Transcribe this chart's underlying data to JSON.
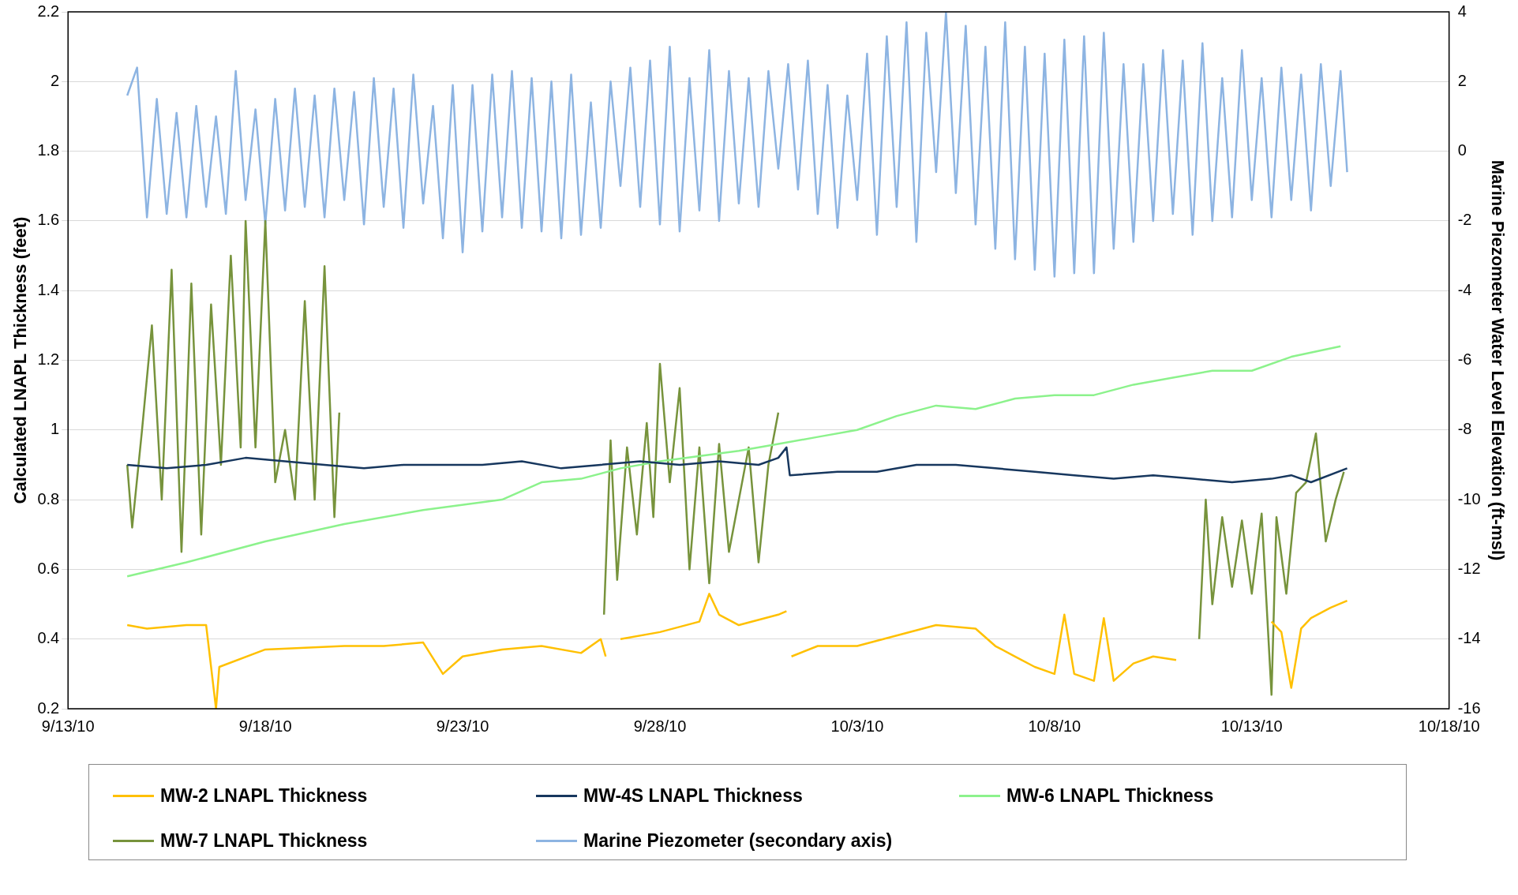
{
  "chart_data": {
    "type": "line",
    "ylabel": "Calculated LNAPL Thickness (feet)",
    "y2label": "Marine Piezometer Water Level Elevation (ft-msl)",
    "xlim": [
      "--09-13",
      "--10-18"
    ],
    "xticks": [
      {
        "value": "--09-13",
        "label": "9/13/10"
      },
      {
        "value": "--09-18",
        "label": "9/18/10"
      },
      {
        "value": "--09-23",
        "label": "9/23/10"
      },
      {
        "value": "--09-28",
        "label": "9/28/10"
      },
      {
        "value": "--10-03",
        "label": "10/3/10"
      },
      {
        "value": "--10-08",
        "label": "10/8/10"
      },
      {
        "value": "--10-13",
        "label": "10/13/10"
      },
      {
        "value": "--10-18",
        "label": "10/18/10"
      }
    ],
    "ylim": [
      0.2,
      2.2
    ],
    "yticks": [
      0.2,
      0.4,
      0.6,
      0.8,
      1,
      1.2,
      1.4,
      1.6,
      1.8,
      2,
      2.2
    ],
    "y2lim": [
      -16,
      4
    ],
    "y2ticks": [
      -16,
      -14,
      -12,
      -10,
      -8,
      -6,
      -4,
      -2,
      0,
      2,
      4
    ],
    "grid": "y",
    "legend": "bottom",
    "marker": "none",
    "line_style": "solid",
    "series": [
      {
        "name": "MW-2 LNAPL Thickness",
        "color": "#ffc000",
        "x": [
          "--09-14T12:00",
          "--09-15T00:00",
          "--09-16T00:00",
          "--09-16T12:00",
          "--09-16T18:00",
          "--09-16T20:00",
          "--09-18T00:00",
          "--09-20T00:00",
          "--09-21T00:00",
          "--09-22T00:00",
          "--09-22T12:00",
          "--09-23T00:00",
          "--09-24T00:00",
          "--09-25T00:00",
          "--09-26T00:00",
          "--09-26T12:00",
          "--09-26T15:00",
          "--09-26T18:00",
          "--09-27T00:00",
          "--09-28T00:00",
          "--09-29T00:00",
          "--09-29T06:00",
          "--09-29T12:00",
          "--09-30T00:00",
          "--10-01T00:00",
          "--10-01T05:00",
          "--10-01T06:00",
          "--10-01T08:00",
          "--10-02T00:00",
          "--10-03T00:00",
          "--10-04T00:00",
          "--10-05T00:00",
          "--10-06T00:00",
          "--10-06T12:00",
          "--10-07T00:00",
          "--10-07T12:00",
          "--10-08T00:00",
          "--10-08T06:00",
          "--10-08T12:00",
          "--10-09T00:00",
          "--10-09T06:00",
          "--10-09T12:00",
          "--10-10T00:00",
          "--10-10T12:00",
          "--10-11T02:00",
          "--10-12T00:00",
          "--10-13T12:00",
          "--10-13T18:00",
          "--10-14T00:00",
          "--10-14T06:00",
          "--10-14T12:00",
          "--10-15T00:00",
          "--10-15T10:00"
        ],
        "values": [
          0.44,
          0.43,
          0.44,
          0.44,
          0.2,
          0.32,
          0.37,
          0.38,
          0.38,
          0.39,
          0.3,
          0.35,
          0.37,
          0.38,
          0.36,
          0.4,
          0.35,
          null,
          0.4,
          0.42,
          0.45,
          0.53,
          0.47,
          0.44,
          0.47,
          0.48,
          null,
          0.35,
          0.38,
          0.38,
          0.41,
          0.44,
          0.43,
          0.38,
          0.35,
          0.32,
          0.3,
          0.47,
          0.3,
          0.28,
          0.46,
          0.28,
          0.33,
          0.35,
          0.34,
          null,
          0.45,
          0.42,
          0.26,
          0.43,
          0.46,
          0.49,
          0.51
        ]
      },
      {
        "name": "MW-4S LNAPL Thickness",
        "color": "#17375e",
        "x": [
          "--09-14T12:00",
          "--09-15T12:00",
          "--09-16T12:00",
          "--09-17T12:00",
          "--09-18T12:00",
          "--09-19T12:00",
          "--09-20T12:00",
          "--09-21T12:00",
          "--09-22T12:00",
          "--09-23T12:00",
          "--09-24T12:00",
          "--09-25T12:00",
          "--09-26T12:00",
          "--09-27T12:00",
          "--09-28T12:00",
          "--09-29T12:00",
          "--09-30T12:00",
          "--10-01T00:00",
          "--10-01T05:00",
          "--10-01T07:00",
          "--10-02T12:00",
          "--10-03T12:00",
          "--10-04T12:00",
          "--10-05T12:00",
          "--10-06T12:00",
          "--10-07T12:00",
          "--10-08T12:00",
          "--10-09T12:00",
          "--10-10T12:00",
          "--10-11T12:00",
          "--10-12T12:00",
          "--10-13T12:00",
          "--10-14T00:00",
          "--10-14T12:00",
          "--10-15T10:00"
        ],
        "values": [
          0.9,
          0.89,
          0.9,
          0.92,
          0.91,
          0.9,
          0.89,
          0.9,
          0.9,
          0.9,
          0.91,
          0.89,
          0.9,
          0.91,
          0.9,
          0.91,
          0.9,
          0.92,
          0.95,
          0.87,
          0.88,
          0.88,
          0.9,
          0.9,
          0.89,
          0.88,
          0.87,
          0.86,
          0.87,
          0.86,
          0.85,
          0.86,
          0.87,
          0.85,
          0.89
        ]
      },
      {
        "name": "MW-6 LNAPL Thickness",
        "color": "#8cf28c",
        "x": [
          "--09-14T12:00",
          "--09-16T00:00",
          "--09-18T00:00",
          "--09-20T00:00",
          "--09-22T00:00",
          "--09-24T00:00",
          "--09-25T00:00",
          "--09-26T00:00",
          "--09-27T00:00",
          "--09-28T00:00",
          "--09-30T00:00",
          "--10-01T00:00",
          "--10-02T00:00",
          "--10-03T00:00",
          "--10-04T00:00",
          "--10-05T00:00",
          "--10-06T00:00",
          "--10-07T00:00",
          "--10-08T00:00",
          "--10-09T00:00",
          "--10-10T00:00",
          "--10-11T00:00",
          "--10-12T00:00",
          "--10-13T00:00",
          "--10-14T00:00",
          "--10-15T06:00"
        ],
        "values": [
          0.58,
          0.62,
          0.68,
          0.73,
          0.77,
          0.8,
          0.85,
          0.86,
          0.89,
          0.91,
          0.94,
          0.96,
          0.98,
          1,
          1.04,
          1.07,
          1.06,
          1.09,
          1.1,
          1.1,
          1.13,
          1.15,
          1.17,
          1.17,
          1.21,
          1.24
        ]
      },
      {
        "name": "MW-7 LNAPL Thickness",
        "color": "#77933c",
        "x": [
          "--09-14T12:00",
          "--09-14T15:00",
          "--09-14T21:00",
          "--09-15T03:00",
          "--09-15T09:00",
          "--09-15T15:00",
          "--09-15T21:00",
          "--09-16T03:00",
          "--09-16T09:00",
          "--09-16T15:00",
          "--09-16T21:00",
          "--09-17T03:00",
          "--09-17T09:00",
          "--09-17T12:00",
          "--09-17T18:00",
          "--09-18T00:00",
          "--09-18T06:00",
          "--09-18T12:00",
          "--09-18T18:00",
          "--09-19T00:00",
          "--09-19T06:00",
          "--09-19T12:00",
          "--09-19T18:00",
          "--09-19T21:00",
          "--09-20T00:00",
          "--09-26T14:00",
          "--09-26T18:00",
          "--09-26T22:00",
          "--09-27T04:00",
          "--09-27T10:00",
          "--09-27T16:00",
          "--09-27T20:00",
          "--09-28T00:00",
          "--09-28T06:00",
          "--09-28T12:00",
          "--09-28T18:00",
          "--09-29T00:00",
          "--09-29T06:00",
          "--09-29T12:00",
          "--09-29T18:00",
          "--09-30T06:00",
          "--09-30T12:00",
          "--09-30T18:00",
          "--10-01T00:00",
          "--10-06T00:00",
          "--10-11T16:00",
          "--10-11T20:00",
          "--10-12T00:00",
          "--10-12T06:00",
          "--10-12T12:00",
          "--10-12T18:00",
          "--10-13T00:00",
          "--10-13T06:00",
          "--10-13T12:00",
          "--10-13T15:00",
          "--10-13T21:00",
          "--10-14T03:00",
          "--10-14T09:00",
          "--10-14T15:00",
          "--10-14T21:00",
          "--10-15T03:00",
          "--10-15T08:00"
        ],
        "values": [
          0.9,
          0.72,
          1,
          1.3,
          0.8,
          1.46,
          0.65,
          1.42,
          0.7,
          1.36,
          0.9,
          1.5,
          0.95,
          1.6,
          0.95,
          1.6,
          0.85,
          1,
          0.8,
          1.37,
          0.8,
          1.47,
          0.75,
          1.05,
          null,
          0.47,
          0.97,
          0.57,
          0.95,
          0.7,
          1.02,
          0.75,
          1.19,
          0.85,
          1.12,
          0.6,
          0.95,
          0.56,
          0.96,
          0.65,
          0.95,
          0.62,
          0.9,
          1.05,
          null,
          0.4,
          0.8,
          0.5,
          0.75,
          0.55,
          0.74,
          0.53,
          0.76,
          0.24,
          0.75,
          0.53,
          0.82,
          0.85,
          0.99,
          0.68,
          0.8,
          0.88
        ]
      },
      {
        "name": "Marine Piezometer (secondary axis)",
        "color": "#8db4e2",
        "axis": "y2",
        "x": [
          "--09-14T12:00",
          "--09-14T18:00",
          "--09-15T00:00",
          "--09-15T06:00",
          "--09-15T12:00",
          "--09-15T18:00",
          "--09-16T00:00",
          "--09-16T06:00",
          "--09-16T12:00",
          "--09-16T18:00",
          "--09-17T00:00",
          "--09-17T06:00",
          "--09-17T12:00",
          "--09-17T18:00",
          "--09-18T00:00",
          "--09-18T06:00",
          "--09-18T12:00",
          "--09-18T18:00",
          "--09-19T00:00",
          "--09-19T06:00",
          "--09-19T12:00",
          "--09-19T18:00",
          "--09-20T00:00",
          "--09-20T06:00",
          "--09-20T12:00",
          "--09-20T18:00",
          "--09-21T00:00",
          "--09-21T06:00",
          "--09-21T12:00",
          "--09-21T18:00",
          "--09-22T00:00",
          "--09-22T06:00",
          "--09-22T12:00",
          "--09-22T18:00",
          "--09-23T00:00",
          "--09-23T06:00",
          "--09-23T12:00",
          "--09-23T18:00",
          "--09-24T00:00",
          "--09-24T06:00",
          "--09-24T12:00",
          "--09-24T18:00",
          "--09-25T00:00",
          "--09-25T06:00",
          "--09-25T12:00",
          "--09-25T18:00",
          "--09-26T00:00",
          "--09-26T06:00",
          "--09-26T12:00",
          "--09-26T18:00",
          "--09-27T00:00",
          "--09-27T06:00",
          "--09-27T12:00",
          "--09-27T18:00",
          "--09-28T00:00",
          "--09-28T06:00",
          "--09-28T12:00",
          "--09-28T18:00",
          "--09-29T00:00",
          "--09-29T06:00",
          "--09-29T12:00",
          "--09-29T18:00",
          "--09-30T00:00",
          "--09-30T06:00",
          "--09-30T12:00",
          "--09-30T18:00",
          "--10-01T00:00",
          "--10-01T06:00",
          "--10-01T12:00",
          "--10-01T18:00",
          "--10-02T00:00",
          "--10-02T06:00",
          "--10-02T12:00",
          "--10-02T18:00",
          "--10-03T00:00",
          "--10-03T06:00",
          "--10-03T12:00",
          "--10-03T18:00",
          "--10-04T00:00",
          "--10-04T06:00",
          "--10-04T12:00",
          "--10-04T18:00",
          "--10-05T00:00",
          "--10-05T06:00",
          "--10-05T12:00",
          "--10-05T18:00",
          "--10-06T00:00",
          "--10-06T06:00",
          "--10-06T12:00",
          "--10-06T18:00",
          "--10-07T00:00",
          "--10-07T06:00",
          "--10-07T12:00",
          "--10-07T18:00",
          "--10-08T00:00",
          "--10-08T06:00",
          "--10-08T12:00",
          "--10-08T18:00",
          "--10-09T00:00",
          "--10-09T06:00",
          "--10-09T12:00",
          "--10-09T18:00",
          "--10-10T00:00",
          "--10-10T06:00",
          "--10-10T12:00",
          "--10-10T18:00",
          "--10-11T00:00",
          "--10-11T06:00",
          "--10-11T12:00",
          "--10-11T18:00",
          "--10-12T00:00",
          "--10-12T06:00",
          "--10-12T12:00",
          "--10-12T18:00",
          "--10-13T00:00",
          "--10-13T06:00",
          "--10-13T12:00",
          "--10-13T18:00",
          "--10-14T00:00",
          "--10-14T06:00",
          "--10-14T12:00",
          "--10-14T18:00",
          "--10-15T00:00",
          "--10-15T06:00",
          "--10-15T10:00"
        ],
        "values": [
          1.6,
          2.4,
          -1.9,
          1.5,
          -1.8,
          1.1,
          -1.9,
          1.3,
          -1.6,
          1,
          -1.8,
          2.3,
          -1.4,
          1.2,
          -2.1,
          1.5,
          -1.7,
          1.8,
          -1.6,
          1.6,
          -1.9,
          1.8,
          -1.4,
          1.7,
          -2.1,
          2.1,
          -1.6,
          1.8,
          -2.2,
          2.2,
          -1.5,
          1.3,
          -2.5,
          1.9,
          -2.9,
          1.9,
          -2.3,
          2.2,
          -1.9,
          2.3,
          -2.2,
          2.1,
          -2.3,
          2,
          -2.5,
          2.2,
          -2.4,
          1.4,
          -2.2,
          2,
          -1,
          2.4,
          -1.6,
          2.6,
          -2.1,
          3,
          -2.3,
          2.1,
          -1.7,
          2.9,
          -2,
          2.3,
          -1.5,
          2.1,
          -1.6,
          2.3,
          -0.5,
          2.5,
          -1.1,
          2.6,
          -1.8,
          1.9,
          -2.2,
          1.6,
          -1.4,
          2.8,
          -2.4,
          3.3,
          -1.6,
          3.7,
          -2.6,
          3.4,
          -0.6,
          4,
          -1.2,
          3.6,
          -2.1,
          3,
          -2.8,
          3.7,
          -3.1,
          3,
          -3.4,
          2.8,
          -3.6,
          3.2,
          -3.5,
          3.3,
          -3.5,
          3.4,
          -2.8,
          2.5,
          -2.6,
          2.5,
          -2,
          2.9,
          -1.8,
          2.6,
          -2.4,
          3.1,
          -2,
          2.1,
          -1.9,
          2.9,
          -1.4,
          2.1,
          -1.9,
          2.4,
          -1.4,
          2.2,
          -1.7,
          2.5,
          -1,
          2.3,
          -0.6
        ]
      }
    ]
  }
}
